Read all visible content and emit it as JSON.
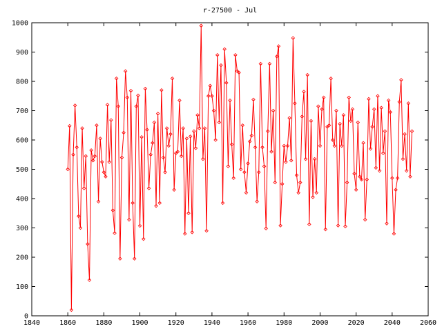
{
  "chart_data": {
    "type": "line",
    "title": "r-27500 - Jul",
    "xlabel": "",
    "ylabel": "",
    "xlim": [
      1840,
      2060
    ],
    "ylim": [
      0,
      1000
    ],
    "x_ticks": [
      1840,
      1860,
      1880,
      1900,
      1920,
      1940,
      1960,
      1980,
      2000,
      2020,
      2040,
      2060
    ],
    "y_ticks": [
      0,
      100,
      200,
      300,
      400,
      500,
      600,
      700,
      800,
      900,
      1000
    ],
    "grid": false,
    "legend": "none",
    "series": [
      {
        "color": "#ff0000",
        "marker": "diamond",
        "x_start": 1860,
        "x_step": 1,
        "values": [
          500,
          648,
          20,
          550,
          718,
          575,
          340,
          300,
          640,
          435,
          545,
          245,
          122,
          565,
          530,
          545,
          650,
          390,
          605,
          525,
          490,
          475,
          720,
          525,
          668,
          360,
          282,
          810,
          715,
          195,
          540,
          625,
          835,
          745,
          328,
          768,
          385,
          195,
          715,
          752,
          307,
          610,
          262,
          775,
          635,
          435,
          550,
          590,
          660,
          375,
          690,
          385,
          770,
          540,
          490,
          640,
          580,
          620,
          810,
          430,
          555,
          560,
          735,
          545,
          640,
          280,
          605,
          350,
          612,
          285,
          630,
          572,
          685,
          640,
          990,
          535,
          640,
          290,
          750,
          785,
          750,
          700,
          600,
          890,
          660,
          855,
          385,
          910,
          795,
          510,
          735,
          585,
          470,
          890,
          835,
          830,
          500,
          650,
          490,
          420,
          520,
          595,
          615,
          738,
          575,
          390,
          490,
          860,
          575,
          510,
          298,
          630,
          860,
          560,
          700,
          455,
          885,
          920,
          308,
          450,
          580,
          525,
          580,
          675,
          530,
          948,
          725,
          480,
          420,
          455,
          680,
          765,
          535,
          822,
          312,
          665,
          405,
          535,
          420,
          715,
          580,
          705,
          745,
          295,
          645,
          650,
          810,
          600,
          580,
          700,
          308,
          655,
          580,
          685,
          305,
          455,
          745,
          665,
          705,
          485,
          430,
          660,
          475,
          465,
          590,
          328,
          465,
          740,
          570,
          645,
          705,
          505,
          750,
          495,
          710,
          555,
          630,
          315,
          735,
          695,
          470,
          280,
          430,
          470,
          730,
          805,
          535,
          620,
          495,
          725,
          475,
          630
        ]
      }
    ]
  }
}
